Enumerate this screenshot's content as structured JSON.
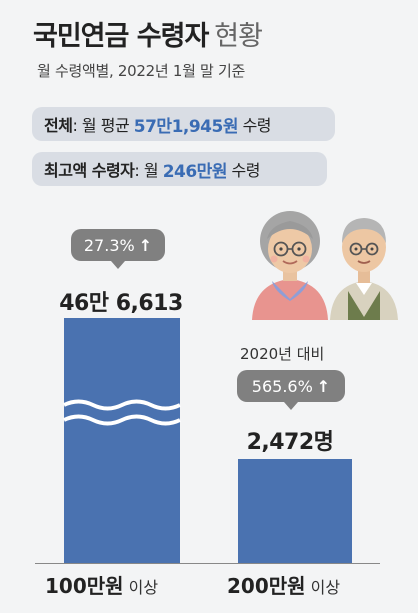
{
  "header": {
    "title": "국민연금 수령자",
    "title_light": "현황",
    "subtitle": "월 수령액별, 2022년 1월 말 기준"
  },
  "summary": {
    "avg_prefix": "전체",
    "avg_mid": ": 월 평균 ",
    "avg_value": "57만1,945원",
    "avg_suffix": " 수령",
    "max_prefix": "최고액 수령자",
    "max_mid": ": 월 ",
    "max_value": "246만원",
    "max_suffix": " 수령"
  },
  "annotations": {
    "growth_1": "27.3%",
    "growth_2": "565.6%",
    "arrow": "↑",
    "comparison_note": "2020년 대비"
  },
  "bar_labels": {
    "value_1": "46만 6,613",
    "value_2": "2,472명",
    "cat_1_main": "100만원",
    "cat_1_suffix": " 이상",
    "cat_2_main": "200만원",
    "cat_2_suffix": " 이상"
  },
  "colors": {
    "bar": "#4a72b0",
    "accent": "#3a6cb4",
    "bubble": "#808080"
  },
  "chart_data": {
    "type": "bar",
    "categories": [
      "100만원 이상",
      "200만원 이상"
    ],
    "values": [
      466613,
      2472
    ],
    "axis_break": true,
    "title": "국민연금 수령자 현황",
    "xlabel": "",
    "ylabel": ""
  }
}
